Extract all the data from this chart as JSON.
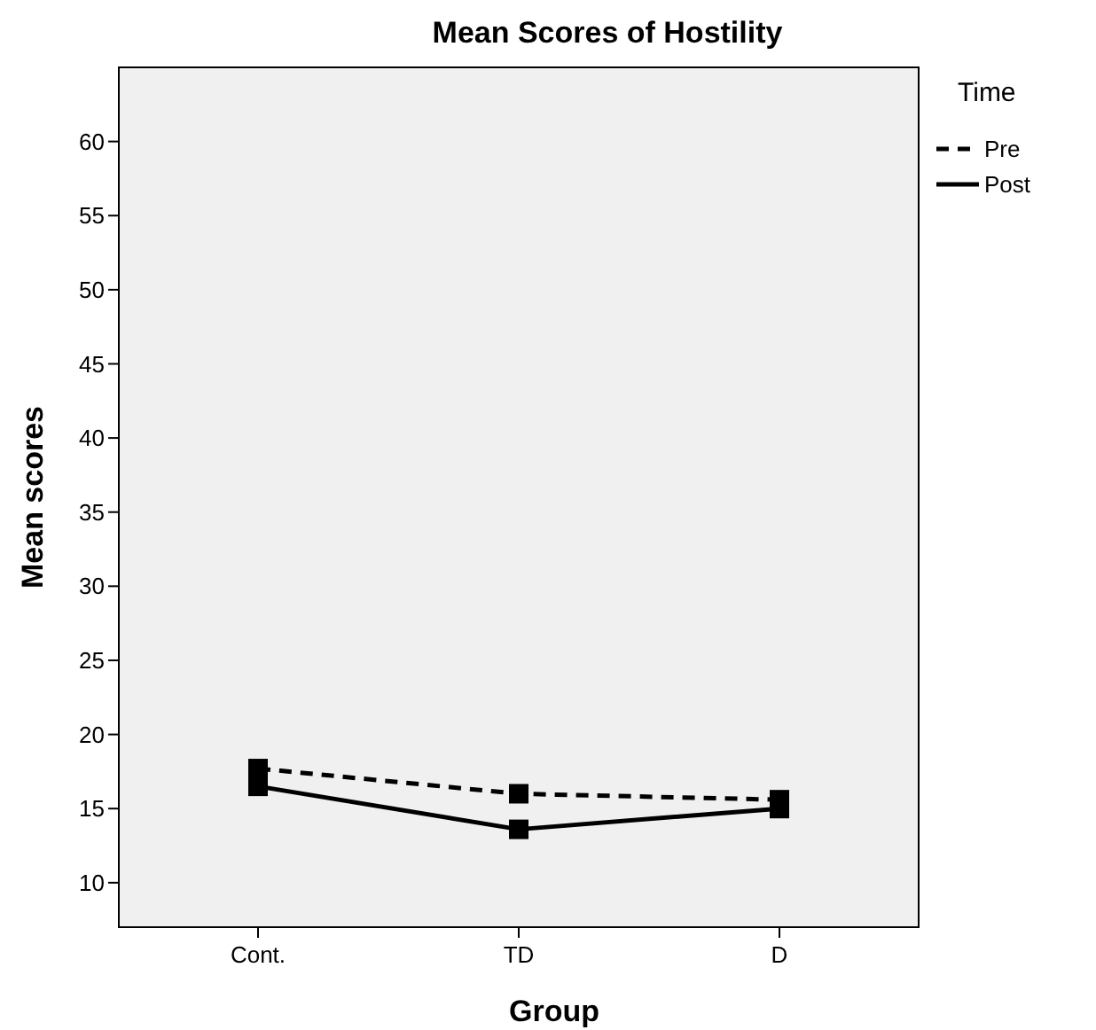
{
  "chart_data": {
    "type": "line",
    "title": "Mean Scores of Hostility",
    "xlabel": "Group",
    "ylabel": "Mean scores",
    "legend_title": "Time",
    "categories": [
      "Cont.",
      "TD",
      "D"
    ],
    "series": [
      {
        "name": "Pre",
        "color": "#000000",
        "line_style": "dashed",
        "values": [
          17.7,
          16.0,
          15.6
        ]
      },
      {
        "name": "Post",
        "color": "#000000",
        "line_style": "solid",
        "values": [
          16.5,
          13.6,
          15.0
        ]
      }
    ],
    "ylim": [
      7,
      65
    ],
    "yticks": [
      10,
      15,
      20,
      25,
      30,
      35,
      40,
      45,
      50,
      55,
      60
    ],
    "grid": false,
    "legend": "top right",
    "marker": "square"
  }
}
